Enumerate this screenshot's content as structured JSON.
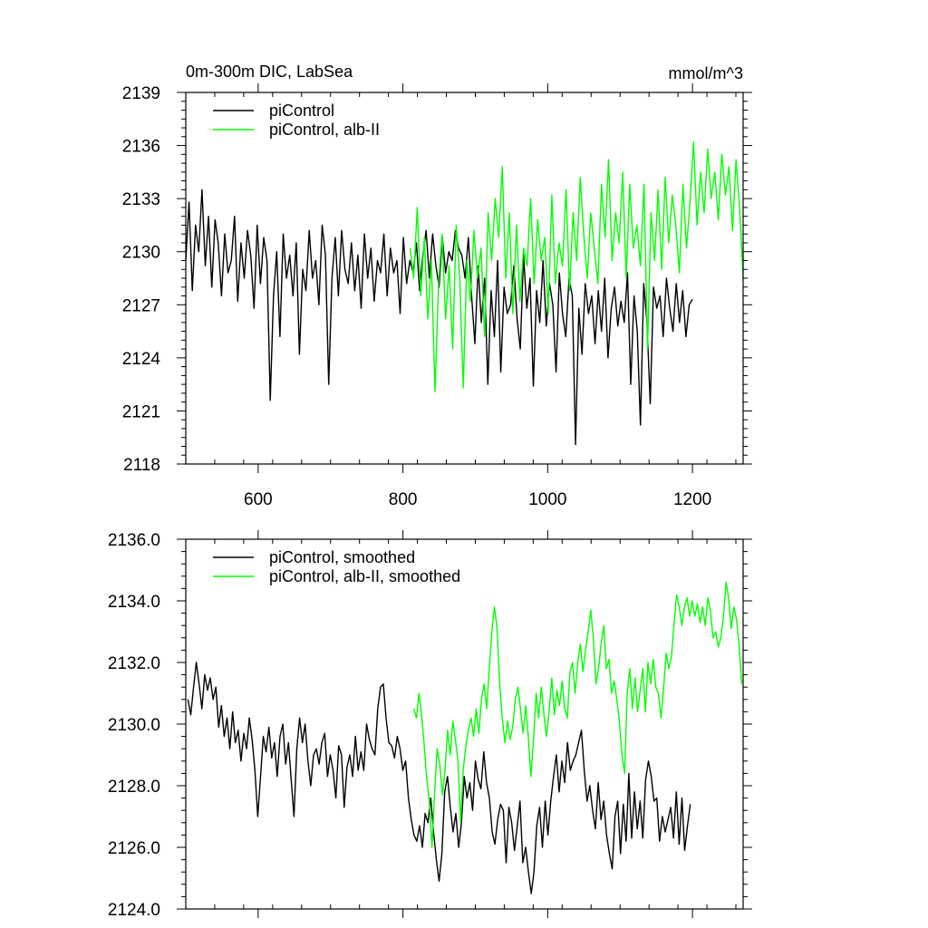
{
  "colors": {
    "black": "#000000",
    "green": "#00ff00"
  },
  "chart_data": [
    {
      "type": "line",
      "title_left": "0m-300m DIC, LabSea",
      "title_right": "mmol/m^3",
      "xlim": [
        500,
        1270
      ],
      "ylim": [
        2118,
        2139
      ],
      "xticks": [
        600,
        800,
        1000,
        1200
      ],
      "xtick_labels": [
        "600",
        "800",
        "1000",
        "1200"
      ],
      "yticks": [
        2118,
        2121,
        2124,
        2127,
        2130,
        2133,
        2136,
        2139
      ],
      "ytick_labels": [
        "2118",
        "2121",
        "2124",
        "2127",
        "2130",
        "2133",
        "2136",
        "2139"
      ],
      "legend_position": "top-left",
      "series": [
        {
          "name": "piControl",
          "color": "#000000",
          "x_start": 500,
          "x_end": 1200,
          "values": [
            2129.5,
            2132.8,
            2127.8,
            2131.5,
            2130,
            2133.5,
            2129.2,
            2132,
            2128,
            2131.8,
            2130.5,
            2127.5,
            2131,
            2128.8,
            2129.5,
            2132,
            2127.2,
            2130.5,
            2128.5,
            2131.2,
            2129.8,
            2126.8,
            2131.5,
            2128.2,
            2130.8,
            2129.5,
            2121.6,
            2127.5,
            2130,
            2125.2,
            2131,
            2128.5,
            2129.8,
            2127.5,
            2130.5,
            2124.2,
            2129,
            2127.8,
            2131.2,
            2128.5,
            2129.5,
            2127,
            2131.5,
            2129.8,
            2122.5,
            2128.5,
            2130.8,
            2127.5,
            2131.2,
            2129,
            2128.2,
            2130.5,
            2127.8,
            2129.8,
            2126.8,
            2131,
            2128.5,
            2130.2,
            2127.2,
            2129.5,
            2128.8,
            2131,
            2127.5,
            2130.2,
            2128.8,
            2129.5,
            2126.5,
            2130.8,
            2128.2,
            2129.5,
            2128.8,
            2130.5,
            2127.8,
            2129.8,
            2131.2,
            2128.5,
            2131,
            2129.2,
            2128,
            2130.8,
            2128.8,
            2130,
            2129.5,
            2131.2,
            2130.2,
            2129.8,
            2128.5,
            2130.8,
            2127.5,
            2124.8,
            2129.2,
            2126,
            2128.5,
            2122.5,
            2127.8,
            2125.2,
            2129.5,
            2123.2,
            2128,
            2126.5,
            2127,
            2129.2,
            2126.2,
            2124.5,
            2129.8,
            2126.8,
            2128.5,
            2122.4,
            2127.8,
            2126,
            2129.5,
            2125.8,
            2128.2,
            2127,
            2123.2,
            2128.8,
            2126.5,
            2125.2,
            2128.5,
            2127.5,
            2119.1,
            2126.8,
            2124.2,
            2128.2,
            2126.5,
            2127.5,
            2124.8,
            2127.8,
            2125.5,
            2128.5,
            2124,
            2126.8,
            2128,
            2125.8,
            2127.2,
            2126,
            2128.8,
            2122.5,
            2127.5,
            2125.5,
            2120.2,
            2128.2,
            2126,
            2121.4,
            2128,
            2126.8,
            2127.5,
            2125.2,
            2128.5,
            2126.8,
            2125.5,
            2128.2,
            2126,
            2127.8,
            2125.2,
            2127,
            2127.3
          ]
        },
        {
          "name": "piControl, alb-II",
          "color": "#00ff00",
          "x_start": 810,
          "x_end": 1270,
          "values": [
            2130.2,
            2128.5,
            2132.5,
            2127.5,
            2130.8,
            2126.2,
            2129.5,
            2122.1,
            2128.2,
            2131,
            2126.2,
            2129.2,
            2124.5,
            2131.5,
            2128.5,
            2122.3,
            2129.5,
            2127.2,
            2131.2,
            2128.5,
            2130.2,
            2125.2,
            2132.2,
            2129.5,
            2133,
            2130.8,
            2134.8,
            2128.5,
            2132.2,
            2126.5,
            2131.5,
            2127.2,
            2130.2,
            2129.2,
            2133,
            2128.2,
            2131.8,
            2129.5,
            2130.8,
            2126.5,
            2133.2,
            2128.2,
            2130.5,
            2129.2,
            2133.5,
            2127.8,
            2132.2,
            2129.5,
            2134.2,
            2131,
            2128.5,
            2132.2,
            2130.2,
            2128.2,
            2133.8,
            2130.8,
            2135.2,
            2129.5,
            2132.2,
            2130.5,
            2134.5,
            2128.5,
            2133.8,
            2130.2,
            2131.5,
            2129.2,
            2133.8,
            2124.5,
            2132.2,
            2129.5,
            2133.5,
            2129,
            2134.2,
            2130.5,
            2133.2,
            2131.5,
            2128.8,
            2133.8,
            2130.2,
            2132.8,
            2136.2,
            2131.5,
            2134.5,
            2132.2,
            2135.8,
            2133,
            2134.5,
            2131.8,
            2135.5,
            2133.2,
            2134.8,
            2131.2,
            2135.2,
            2132.5,
            2128.5
          ]
        }
      ]
    },
    {
      "type": "line",
      "xlim": [
        500,
        1270
      ],
      "ylim": [
        2124,
        2136
      ],
      "xticks": [
        600,
        800,
        1000,
        1200
      ],
      "yticks": [
        2124,
        2126,
        2128,
        2130,
        2132,
        2134,
        2136
      ],
      "ytick_labels": [
        "2124.0",
        "2126.0",
        "2128.0",
        "2130.0",
        "2132.0",
        "2134.0",
        "2136.0"
      ],
      "legend_position": "top-left",
      "series": [
        {
          "name": "piControl, smoothed",
          "color": "#000000",
          "x_start": 503,
          "x_end": 1197,
          "values": [
            2130.8,
            2130.3,
            2131.2,
            2132,
            2131.3,
            2130.5,
            2131.6,
            2131.1,
            2131.5,
            2130.8,
            2131.2,
            2129.9,
            2130.6,
            2129.6,
            2130.2,
            2129.2,
            2130.4,
            2129.4,
            2129.8,
            2128.8,
            2129.7,
            2129.2,
            2130.2,
            2129.5,
            2128.5,
            2127,
            2128.3,
            2129.6,
            2129.1,
            2129.9,
            2128.9,
            2129.4,
            2128.3,
            2129.6,
            2130,
            2128.7,
            2129.4,
            2128.2,
            2127,
            2129.2,
            2130.2,
            2129.4,
            2130,
            2128.8,
            2128,
            2129,
            2129.2,
            2128.7,
            2129.4,
            2129.7,
            2128.3,
            2129,
            2128.5,
            2127.6,
            2129.3,
            2129,
            2127.3,
            2128.6,
            2129,
            2128.3,
            2129.6,
            2128.5,
            2129.1,
            2128.5,
            2130,
            2129.5,
            2129.2,
            2129,
            2130.5,
            2131.2,
            2131.3,
            2130.2,
            2129.4,
            2129.3,
            2128.9,
            2129.6,
            2129.2,
            2128.5,
            2128.8,
            2127.6,
            2126.9,
            2126.4,
            2126.2,
            2126.7,
            2126,
            2127.1,
            2126.8,
            2127.6,
            2126.5,
            2125.6,
            2124.9,
            2125.8,
            2127.8,
            2128.3,
            2127.3,
            2126.5,
            2127.1,
            2126,
            2126.8,
            2128.3,
            2127.6,
            2128.1,
            2127.2,
            2128.8,
            2128.2,
            2127.9,
            2129.1,
            2128.1,
            2127.6,
            2126.5,
            2126.1,
            2126.9,
            2127.4,
            2127.2,
            2125.5,
            2127.3,
            2126.8,
            2125.9,
            2126.7,
            2127.5,
            2125.5,
            2126,
            2125.2,
            2124.5,
            2125.2,
            2126.7,
            2127.3,
            2126,
            2127.5,
            2126.4,
            2127.5,
            2128.3,
            2129,
            2127.8,
            2128.8,
            2128.1,
            2129.4,
            2128.5,
            2128.8,
            2129,
            2129.4,
            2129.8,
            2128.5,
            2127.5,
            2128,
            2127.2,
            2126.6,
            2128.1,
            2126.9,
            2127.5,
            2126.4,
            2125.8,
            2125.3,
            2127,
            2127.5,
            2125.8,
            2127.4,
            2126.2,
            2128.4,
            2126.3,
            2127.8,
            2126.6,
            2127.5,
            2126.3,
            2128.2,
            2128.8,
            2128.3,
            2127.5,
            2127.6,
            2126.2,
            2127,
            2126.5,
            2126.9,
            2127.3,
            2126.3,
            2127.8,
            2126.1,
            2127.6,
            2125.9,
            2126.7,
            2127.4
          ]
        },
        {
          "name": "piControl, alb-II, smoothed",
          "color": "#00ff00",
          "x_start": 815,
          "x_end": 1268,
          "values": [
            2130.5,
            2130.2,
            2131,
            2130.3,
            2129.3,
            2128.2,
            2127.5,
            2126,
            2127.8,
            2129.2,
            2128.7,
            2127.7,
            2128.5,
            2129.8,
            2129,
            2130.1,
            2129.5,
            2128.8,
            2126.8,
            2128.5,
            2129.3,
            2129.8,
            2130.2,
            2129.6,
            2130.5,
            2129.7,
            2130.8,
            2131.3,
            2130.5,
            2131.8,
            2133,
            2133.8,
            2133.1,
            2131.3,
            2130.2,
            2129.4,
            2130.1,
            2129.5,
            2129.9,
            2130.8,
            2131.2,
            2130.5,
            2129.7,
            2130.6,
            2129.6,
            2128.3,
            2129.5,
            2131,
            2130.2,
            2131.2,
            2130.3,
            2129.6,
            2130.4,
            2131.5,
            2130.3,
            2131.1,
            2130.6,
            2131.4,
            2130.5,
            2130.2,
            2131.7,
            2132,
            2131,
            2132,
            2132.6,
            2131.7,
            2132.4,
            2133,
            2133.7,
            2132.8,
            2131.3,
            2131.8,
            2132.6,
            2133.2,
            2131.8,
            2132.1,
            2131,
            2131.4,
            2130.8,
            2130.1,
            2129,
            2128.4,
            2131,
            2131.8,
            2130.5,
            2131.5,
            2130.4,
            2131.1,
            2131.8,
            2130.4,
            2132,
            2131.3,
            2132.1,
            2131.2,
            2131,
            2130.2,
            2131.2,
            2132.3,
            2131.8,
            2132.2,
            2133.2,
            2134.2,
            2133.8,
            2133.2,
            2133.8,
            2134.1,
            2133.5,
            2134,
            2133.5,
            2133.9,
            2133.3,
            2133.8,
            2133.2,
            2134.1,
            2133.7,
            2132.8,
            2133,
            2132.5,
            2132.8,
            2133.5,
            2134.6,
            2134.1,
            2133.1,
            2133.8,
            2133.4,
            2132.6,
            2131.3
          ]
        }
      ]
    }
  ]
}
